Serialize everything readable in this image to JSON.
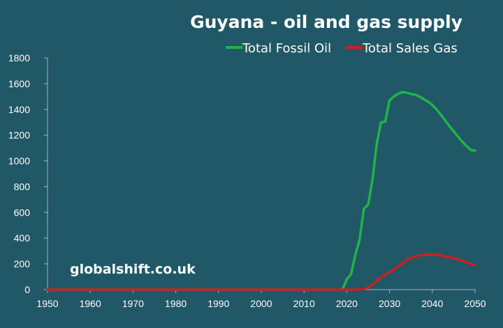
{
  "chart_data": {
    "type": "line",
    "title": "Guyana - oil and gas supply",
    "xlabel": "",
    "ylabel": "",
    "xlim": [
      1950,
      2050
    ],
    "ylim": [
      0,
      1800
    ],
    "xticks": [
      1950,
      1960,
      1970,
      1980,
      1990,
      2000,
      2010,
      2020,
      2030,
      2040,
      2050
    ],
    "yticks": [
      0,
      200,
      400,
      600,
      800,
      1000,
      1200,
      1400,
      1600,
      1800
    ],
    "grid": false,
    "legend_position": "top-right",
    "watermark": "globalshift.co.uk",
    "series": [
      {
        "name": "Total Fossil Oil",
        "color": "#1fb44a",
        "x": [
          1950,
          2019,
          2020,
          2021,
          2022,
          2023,
          2024,
          2025,
          2026,
          2027,
          2028,
          2029,
          2030,
          2031,
          2032,
          2033,
          2034,
          2035,
          2036,
          2037,
          2038,
          2039,
          2040,
          2041,
          2042,
          2043,
          2044,
          2045,
          2046,
          2047,
          2048,
          2049,
          2050
        ],
        "y": [
          0,
          0,
          80,
          120,
          270,
          390,
          630,
          660,
          850,
          1130,
          1300,
          1305,
          1470,
          1500,
          1520,
          1535,
          1530,
          1520,
          1515,
          1500,
          1480,
          1460,
          1435,
          1400,
          1360,
          1315,
          1270,
          1230,
          1190,
          1150,
          1115,
          1085,
          1080
        ]
      },
      {
        "name": "Total Sales Gas",
        "color": "#cc1f1f",
        "x": [
          1950,
          2023,
          2024,
          2025,
          2026,
          2027,
          2028,
          2029,
          2030,
          2031,
          2032,
          2033,
          2034,
          2035,
          2036,
          2037,
          2038,
          2039,
          2040,
          2041,
          2042,
          2043,
          2044,
          2045,
          2046,
          2047,
          2048,
          2049,
          2050
        ],
        "y": [
          0,
          0,
          5,
          15,
          40,
          70,
          95,
          115,
          135,
          155,
          180,
          205,
          230,
          245,
          258,
          266,
          270,
          272,
          272,
          270,
          266,
          260,
          252,
          245,
          235,
          225,
          212,
          200,
          190
        ]
      }
    ]
  }
}
